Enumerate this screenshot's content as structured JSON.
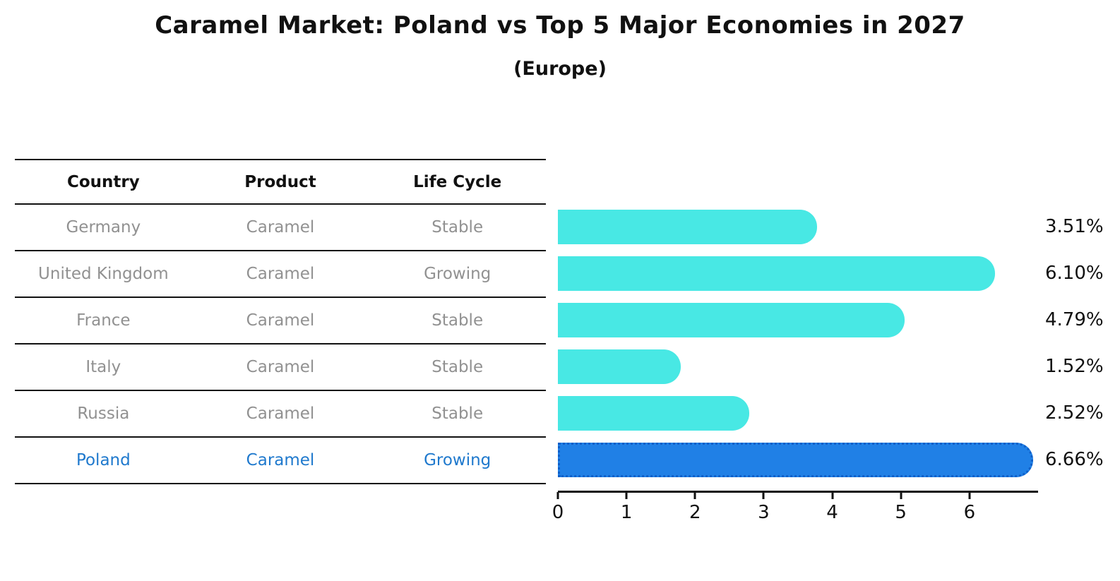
{
  "title": "Caramel Market: Poland vs Top 5 Major Economies in 2027",
  "subtitle": "(Europe)",
  "table": {
    "headers": [
      "Country",
      "Product",
      "Life Cycle"
    ],
    "rows": [
      {
        "country": "Germany",
        "product": "Caramel",
        "life_cycle": "Stable",
        "highlight": false
      },
      {
        "country": "United Kingdom",
        "product": "Caramel",
        "life_cycle": "Growing",
        "highlight": false
      },
      {
        "country": "France",
        "product": "Caramel",
        "life_cycle": "Stable",
        "highlight": false
      },
      {
        "country": "Italy",
        "product": "Caramel",
        "life_cycle": "Stable",
        "highlight": false
      },
      {
        "country": "Russia",
        "product": "Caramel",
        "life_cycle": "Stable",
        "highlight": false
      },
      {
        "country": "Poland",
        "product": "Caramel",
        "life_cycle": "Growing",
        "highlight": true
      }
    ]
  },
  "chart_data": {
    "type": "bar",
    "orientation": "horizontal",
    "title": "Caramel Market: Poland vs Top 5 Major Economies in 2027",
    "subtitle": "(Europe)",
    "categories": [
      "Germany",
      "United Kingdom",
      "France",
      "Italy",
      "Russia",
      "Poland"
    ],
    "values": [
      3.51,
      6.1,
      4.79,
      1.52,
      2.52,
      6.66
    ],
    "value_labels": [
      "3.51%",
      "6.10%",
      "4.79%",
      "1.52%",
      "2.52%",
      "6.66%"
    ],
    "highlight_index": 5,
    "xlim": [
      0,
      7
    ],
    "x_ticks": [
      0,
      1,
      2,
      3,
      4,
      5,
      6
    ],
    "grid": false,
    "legend": false,
    "colors": {
      "bar": "#48e8e4",
      "highlight_bar": "#2080e6",
      "highlight_bar_border": "#0f5fc8",
      "highlight_text": "#1f79cd",
      "row_text": "#919191",
      "text": "#111111"
    }
  }
}
